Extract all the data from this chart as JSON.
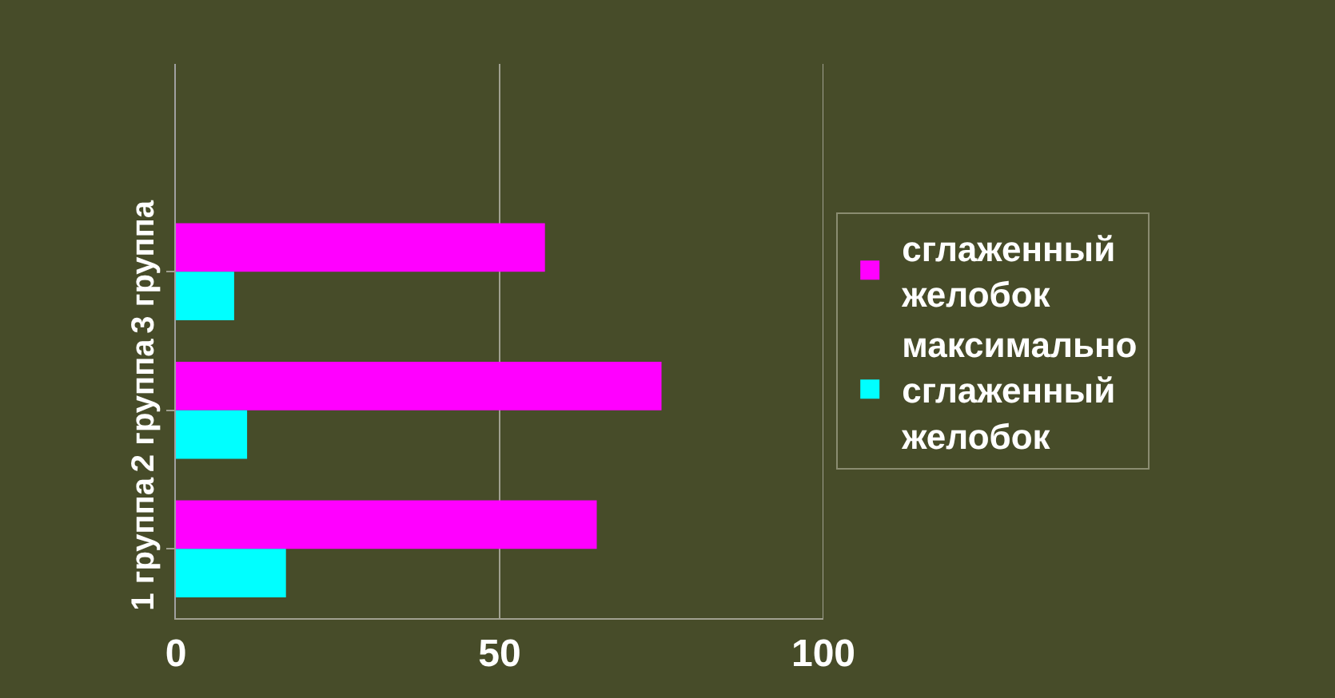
{
  "chart_data": {
    "type": "bar",
    "orientation": "horizontal",
    "categories": [
      "3 группа",
      "2 группа",
      "1 группа"
    ],
    "series": [
      {
        "name": "сглаженный желобок",
        "color": "#ff00ff",
        "values": [
          57,
          75,
          65
        ]
      },
      {
        "name": "максимально сглаженный желобок",
        "color": "#00ffff",
        "values": [
          9,
          11,
          17
        ]
      }
    ],
    "xlim": [
      0,
      100
    ],
    "xticks": [
      0,
      50,
      100
    ],
    "grid": "x",
    "legend": "right"
  }
}
